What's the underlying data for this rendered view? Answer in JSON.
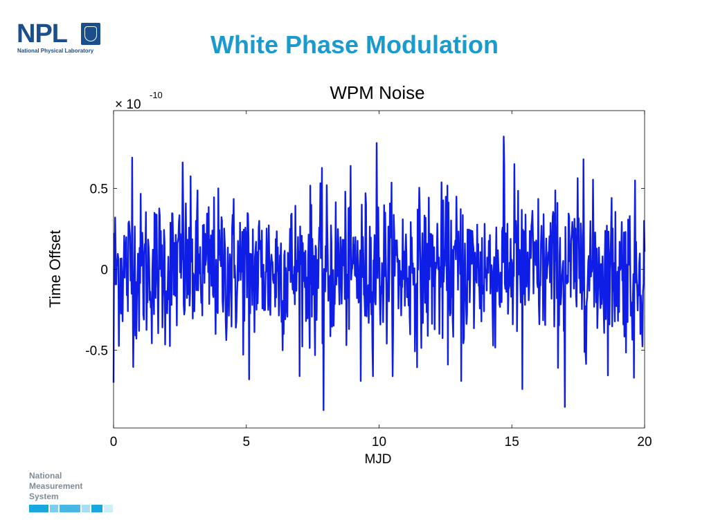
{
  "logo": {
    "letters": "NPL",
    "subtitle": "National Physical Laboratory"
  },
  "slide_title": "White Phase Modulation",
  "footer": {
    "lines": [
      "National",
      "Measurement",
      "System"
    ]
  },
  "colors": {
    "title": "#1a9acd",
    "logo": "#1a4e8c",
    "series": "#0f1ee6",
    "footer_text": "#7f8c97"
  },
  "chart_data": {
    "type": "line",
    "title": "WPM Noise",
    "xlabel": "MJD",
    "ylabel": "Time Offset",
    "y_exponent_label": "× 10",
    "y_exponent": "-10",
    "xlim": [
      0,
      20
    ],
    "ylim": [
      -0.98,
      0.98
    ],
    "xticks": [
      0,
      5,
      10,
      15,
      20
    ],
    "xtick_labels": [
      "0",
      "5",
      "10",
      "15",
      "20"
    ],
    "yticks": [
      0.5,
      0,
      -0.5
    ],
    "ytick_labels": [
      "0.5",
      "0",
      "-0.5"
    ],
    "grid": false,
    "series": [
      {
        "color": "#0f1ee6",
        "x_range": [
          0,
          20
        ],
        "n_points": 1000,
        "values_note": "white noise centered at 0, typical amplitude ±0.35, extremes ≈ +0.82 (near MJD 14.7) and ≈ -0.87 (near MJD 7.9)",
        "peaks": [
          {
            "x": 0.7,
            "y": 0.69
          },
          {
            "x": 2.6,
            "y": 0.66
          },
          {
            "x": 9.9,
            "y": 0.78
          },
          {
            "x": 14.7,
            "y": 0.82
          },
          {
            "x": 15.1,
            "y": 0.65
          },
          {
            "x": 17.7,
            "y": 0.68
          }
        ],
        "troughs": [
          {
            "x": 0.0,
            "y": -0.7
          },
          {
            "x": 5.1,
            "y": -0.68
          },
          {
            "x": 7.9,
            "y": -0.87
          },
          {
            "x": 9.3,
            "y": -0.69
          },
          {
            "x": 13.1,
            "y": -0.69
          },
          {
            "x": 15.4,
            "y": -0.74
          },
          {
            "x": 17.0,
            "y": -0.85
          },
          {
            "x": 19.6,
            "y": -0.67
          }
        ]
      }
    ]
  }
}
